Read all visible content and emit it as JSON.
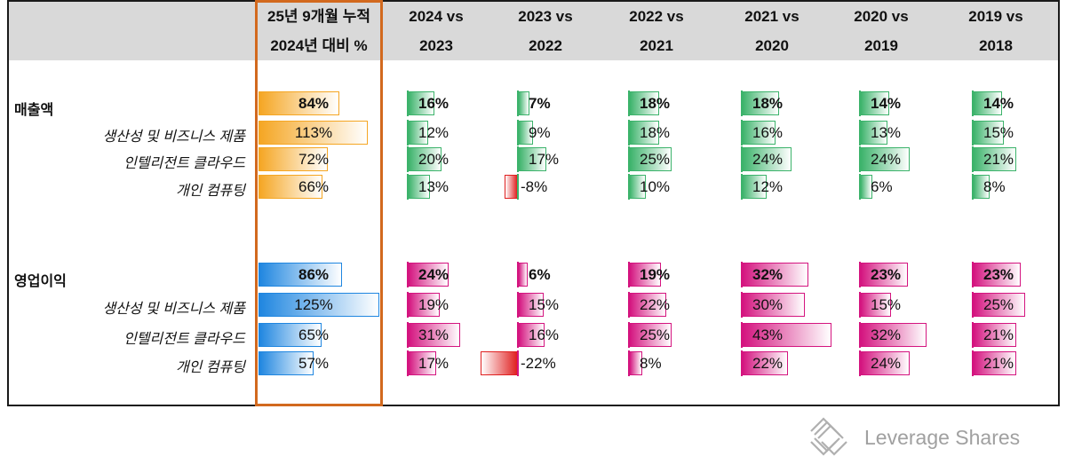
{
  "highlight_header": [
    "25년 9개월 누적",
    "2024년 대비 %"
  ],
  "col_headers": [
    [
      "2024 vs",
      "2023"
    ],
    [
      "2023 vs",
      "2022"
    ],
    [
      "2022 vs",
      "2021"
    ],
    [
      "2021 vs",
      "2020"
    ],
    [
      "2020 vs",
      "2019"
    ],
    [
      "2019 vs",
      "2018"
    ]
  ],
  "brand": {
    "name": "Leverage Shares",
    "logo": "leverage-shares-logo-icon"
  },
  "colors": {
    "ytd_bar": "#f5a623",
    "ytd_opinc_bar": "#1f86e0",
    "revenue_bar": "#3cb36b",
    "opinc_bar": "#d4147f",
    "negative_bar": "#e02020",
    "highlight_border": "#d2691e",
    "header_band": "#d9d9d9"
  },
  "chart_data": {
    "type": "table",
    "unit": "%",
    "columns": [
      "25년 9개월 누적 2024년 대비 %",
      "2024 vs 2023",
      "2023 vs 2022",
      "2022 vs 2021",
      "2021 vs 2020",
      "2020 vs 2019",
      "2019 vs 2018"
    ],
    "sections": [
      {
        "title": "매출액",
        "total": [
          84,
          16,
          7,
          18,
          18,
          14,
          14
        ],
        "rows": [
          {
            "label": "생산성 및 비즈니스 제품",
            "values": [
              113,
              12,
              9,
              18,
              16,
              13,
              15
            ]
          },
          {
            "label": "인텔리전트 클라우드",
            "values": [
              72,
              20,
              17,
              25,
              24,
              24,
              21
            ]
          },
          {
            "label": "개인 컴퓨팅",
            "values": [
              66,
              13,
              -8,
              10,
              12,
              6,
              8
            ]
          }
        ]
      },
      {
        "title": "영업이익",
        "total": [
          86,
          24,
          6,
          19,
          32,
          23,
          23
        ],
        "rows": [
          {
            "label": "생산성 및 비즈니스 제품",
            "values": [
              125,
              19,
              15,
              22,
              30,
              15,
              25
            ]
          },
          {
            "label": "인텔리전트 클라우드",
            "values": [
              65,
              31,
              16,
              25,
              43,
              32,
              21
            ]
          },
          {
            "label": "개인 컴퓨팅",
            "values": [
              57,
              17,
              -22,
              8,
              22,
              24,
              21
            ]
          }
        ]
      }
    ]
  }
}
